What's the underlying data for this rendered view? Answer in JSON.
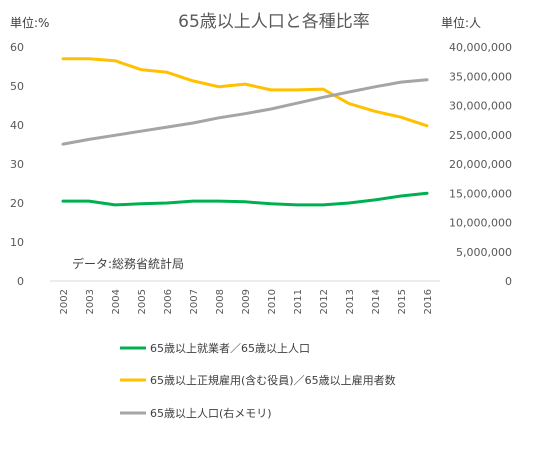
{
  "chart_data": {
    "type": "line",
    "title": "65歳以上人口と各種比率",
    "y_left_unit_label": "単位:%",
    "y_right_unit_label": "単位:人",
    "source_note": "データ:総務省統計局",
    "x": [
      "2002",
      "2003",
      "2004",
      "2005",
      "2006",
      "2007",
      "2008",
      "2009",
      "2010",
      "2011",
      "2012",
      "2013",
      "2014",
      "2015",
      "2016"
    ],
    "ylim_left": [
      0,
      60
    ],
    "ylim_right": [
      0,
      40000000
    ],
    "y_left_ticks": [
      "0",
      "10",
      "20",
      "30",
      "40",
      "50",
      "60"
    ],
    "y_right_ticks": [
      "0",
      "5,000,000",
      "10,000,000",
      "15,000,000",
      "20,000,000",
      "25,000,000",
      "30,000,000",
      "35,000,000",
      "40,000,000"
    ],
    "grid": false,
    "legend_position": "bottom",
    "series": [
      {
        "name": "65歳以上就業者／65歳以上人口",
        "axis": "left",
        "color": "#00b050",
        "values": [
          20.5,
          20.5,
          19.5,
          19.8,
          20.0,
          20.5,
          20.5,
          20.3,
          19.8,
          19.5,
          19.5,
          20.0,
          20.8,
          21.8,
          22.5
        ]
      },
      {
        "name": "65歳以上正規雇用(含む役員)／65歳以上雇用者数",
        "axis": "left",
        "color": "#ffc000",
        "values": [
          57.0,
          57.0,
          56.5,
          54.2,
          53.5,
          51.3,
          49.8,
          50.5,
          49.0,
          49.0,
          49.2,
          45.5,
          43.5,
          42.0,
          39.8
        ]
      },
      {
        "name": "65歳以上人口(右メモリ)",
        "axis": "right",
        "color": "#a5a5a5",
        "values": [
          23400000,
          24200000,
          24900000,
          25600000,
          26300000,
          27000000,
          27900000,
          28600000,
          29400000,
          30400000,
          31400000,
          32300000,
          33200000,
          34000000,
          34400000
        ]
      }
    ]
  }
}
